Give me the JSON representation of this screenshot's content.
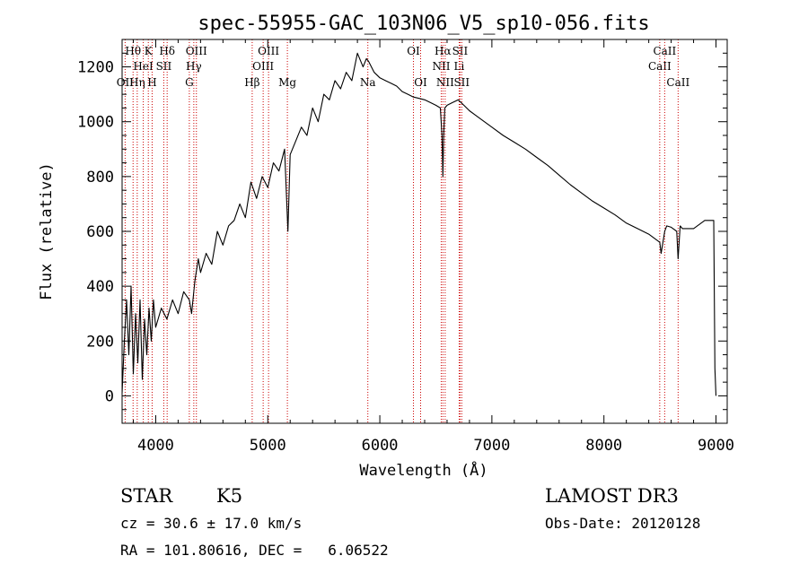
{
  "chart_data": {
    "type": "line",
    "title": "spec-55955-GAC_103N06_V5_sp10-056.fits",
    "xlabel": "Wavelength (Å)",
    "ylabel": "Flux (relative)",
    "xlim": [
      3700,
      9100
    ],
    "ylim": [
      -100,
      1300
    ],
    "x_ticks": [
      4000,
      5000,
      6000,
      7000,
      8000,
      9000
    ],
    "x_tick_labels": [
      "4000",
      "5000",
      "6000",
      "7000",
      "8000",
      "9000"
    ],
    "y_ticks": [
      0,
      200,
      400,
      600,
      800,
      1000,
      1200
    ],
    "y_tick_labels": [
      "0",
      "200",
      "400",
      "600",
      "800",
      "1000",
      "1200"
    ],
    "series": [
      {
        "name": "Flux",
        "color": "#000000",
        "x": [
          3700,
          3720,
          3740,
          3760,
          3780,
          3800,
          3820,
          3840,
          3860,
          3880,
          3900,
          3920,
          3940,
          3960,
          3980,
          4000,
          4050,
          4100,
          4150,
          4200,
          4250,
          4300,
          4320,
          4350,
          4380,
          4400,
          4450,
          4500,
          4550,
          4600,
          4650,
          4700,
          4750,
          4800,
          4850,
          4900,
          4950,
          5000,
          5050,
          5100,
          5150,
          5180,
          5200,
          5250,
          5300,
          5350,
          5400,
          5450,
          5500,
          5550,
          5600,
          5650,
          5700,
          5750,
          5800,
          5850,
          5880,
          5900,
          5950,
          6000,
          6050,
          6100,
          6150,
          6200,
          6250,
          6300,
          6350,
          6400,
          6450,
          6500,
          6540,
          6555,
          6563,
          6570,
          6580,
          6600,
          6650,
          6700,
          6750,
          6800,
          6900,
          7000,
          7100,
          7200,
          7300,
          7400,
          7500,
          7600,
          7700,
          7800,
          7900,
          8000,
          8100,
          8200,
          8300,
          8400,
          8498,
          8510,
          8542,
          8560,
          8600,
          8650,
          8662,
          8680,
          8700,
          8800,
          8900,
          8950,
          8980,
          8990,
          9000
        ],
        "y": [
          10,
          200,
          350,
          150,
          400,
          80,
          300,
          120,
          350,
          60,
          280,
          150,
          320,
          200,
          350,
          250,
          320,
          280,
          350,
          300,
          380,
          350,
          300,
          420,
          500,
          450,
          520,
          480,
          600,
          550,
          620,
          640,
          700,
          650,
          780,
          720,
          800,
          760,
          850,
          820,
          900,
          600,
          880,
          930,
          980,
          950,
          1050,
          1000,
          1100,
          1080,
          1150,
          1120,
          1180,
          1150,
          1250,
          1200,
          1230,
          1220,
          1180,
          1160,
          1150,
          1140,
          1130,
          1110,
          1100,
          1090,
          1085,
          1080,
          1070,
          1060,
          1050,
          950,
          800,
          950,
          1050,
          1060,
          1070,
          1080,
          1060,
          1040,
          1010,
          980,
          950,
          925,
          900,
          870,
          840,
          805,
          770,
          740,
          710,
          685,
          660,
          630,
          610,
          590,
          560,
          520,
          600,
          620,
          615,
          600,
          500,
          620,
          610,
          610,
          640,
          640,
          640,
          100,
          0
        ]
      }
    ],
    "line_markers": [
      {
        "wavelength": 3727,
        "label": "OII",
        "row": 3
      },
      {
        "wavelength": 3798,
        "label": "Hθ",
        "row": 1
      },
      {
        "wavelength": 3835,
        "label": "Hη",
        "row": 3
      },
      {
        "wavelength": 3889,
        "label": "HeI",
        "row": 2
      },
      {
        "wavelength": 3934,
        "label": "K",
        "row": 1
      },
      {
        "wavelength": 3968,
        "label": "H",
        "row": 3
      },
      {
        "wavelength": 4072,
        "label": "SII",
        "row": 2
      },
      {
        "wavelength": 4102,
        "label": "Hδ",
        "row": 1
      },
      {
        "wavelength": 4300,
        "label": "G",
        "row": 3
      },
      {
        "wavelength": 4340,
        "label": "Hγ",
        "row": 2
      },
      {
        "wavelength": 4363,
        "label": "OIII",
        "row": 1
      },
      {
        "wavelength": 4861,
        "label": "Hβ",
        "row": 3
      },
      {
        "wavelength": 4959,
        "label": "OIII",
        "row": 2
      },
      {
        "wavelength": 5007,
        "label": "OIII",
        "row": 1
      },
      {
        "wavelength": 5175,
        "label": "Mg",
        "row": 3
      },
      {
        "wavelength": 5893,
        "label": "Na",
        "row": 3
      },
      {
        "wavelength": 6300,
        "label": "OI",
        "row": 1
      },
      {
        "wavelength": 6364,
        "label": "OI",
        "row": 3
      },
      {
        "wavelength": 6548,
        "label": "NII",
        "row": 2
      },
      {
        "wavelength": 6563,
        "label": "Hα",
        "row": 1
      },
      {
        "wavelength": 6583,
        "label": "NII",
        "row": 3
      },
      {
        "wavelength": 6708,
        "label": "Li",
        "row": 2
      },
      {
        "wavelength": 6716,
        "label": "SII",
        "row": 1
      },
      {
        "wavelength": 6731,
        "label": "SII",
        "row": 3
      },
      {
        "wavelength": 8498,
        "label": "CaII",
        "row": 2
      },
      {
        "wavelength": 8542,
        "label": "CaII",
        "row": 1
      },
      {
        "wavelength": 8662,
        "label": "CaII",
        "row": 3
      }
    ]
  },
  "info": {
    "object_class": "STAR",
    "subclass": "K5",
    "survey": "LAMOST DR3",
    "redshift_text": "cz = 30.6 ± 17.0 km/s",
    "obs_date_text": "Obs-Date: 20120128",
    "coords_text": "RA = 101.80616, DEC =   6.06522"
  },
  "colors": {
    "spectrum": "#000000",
    "marker": "#cc0000",
    "axes": "#000000",
    "background": "#ffffff"
  }
}
